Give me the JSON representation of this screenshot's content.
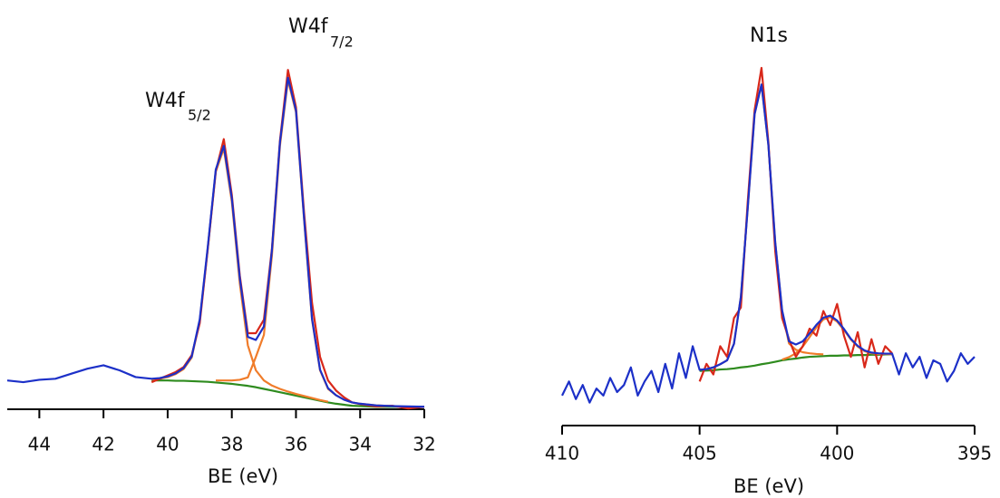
{
  "chart_data": [
    {
      "type": "line",
      "xlabel": "BE (eV)",
      "annotations": [
        {
          "text": "W4f",
          "subscript": "5/2"
        },
        {
          "text": "W4f",
          "subscript": "7/2"
        }
      ],
      "xlim": [
        45,
        32
      ],
      "xticks": [
        44,
        42,
        40,
        38,
        36,
        34,
        32
      ],
      "ylim": [
        0,
        110
      ],
      "x": [
        45,
        44.5,
        44,
        43.5,
        43,
        42.5,
        42,
        41.5,
        41,
        40.5,
        40.25,
        40,
        39.75,
        39.5,
        39.25,
        39,
        38.75,
        38.5,
        38.25,
        38,
        37.75,
        37.5,
        37.25,
        37,
        36.75,
        36.5,
        36.25,
        36,
        35.75,
        35.5,
        35.25,
        35,
        34.75,
        34.5,
        34.25,
        34,
        33.5,
        33,
        32.5,
        32
      ],
      "series": [
        {
          "color": "#2e8b1e",
          "values": [
            null,
            null,
            null,
            null,
            null,
            null,
            null,
            null,
            null,
            8,
            8,
            8,
            7.9,
            7.9,
            7.8,
            7.7,
            7.6,
            7.4,
            7.2,
            7,
            6.7,
            6.4,
            6,
            5.5,
            5,
            4.5,
            4,
            3.5,
            3,
            2.5,
            2,
            1.5,
            1.1,
            0.8,
            0.5,
            0.4,
            0.2,
            0.2,
            0.2,
            0.2
          ]
        },
        {
          "color": "#f07c2a",
          "values": [
            null,
            null,
            null,
            null,
            null,
            null,
            null,
            null,
            null,
            8.3,
            8.5,
            9,
            9.9,
            11.4,
            14.8,
            25.7,
            47,
            69.9,
            76.7,
            61,
            36.7,
            18.4,
            11,
            8,
            6.5,
            5.5,
            4.7,
            4,
            3.4,
            2.8,
            2.2,
            1.7,
            null,
            null,
            null,
            null,
            null,
            null,
            null,
            null
          ]
        },
        {
          "color": "#f07c2a",
          "values": [
            null,
            null,
            null,
            null,
            null,
            null,
            null,
            null,
            null,
            null,
            null,
            null,
            null,
            null,
            null,
            null,
            null,
            8,
            8,
            8,
            8.2,
            8.9,
            15,
            21.5,
            45,
            77.5,
            97,
            87.5,
            56,
            26,
            11,
            5.5,
            3.6,
            2.3,
            1.5,
            1.1,
            0.6,
            0.4,
            null,
            null
          ]
        },
        {
          "color": "#d8281a",
          "values": [
            null,
            null,
            null,
            null,
            null,
            null,
            null,
            null,
            null,
            7.5,
            8.5,
            9.5,
            10.5,
            12,
            15.5,
            25,
            47,
            70,
            79.5,
            63,
            39,
            22,
            22,
            26,
            47,
            79,
            100,
            89,
            58,
            31,
            15,
            8,
            5,
            3,
            1.5,
            1,
            0.3,
            0.5,
            -0.3,
            0.2
          ]
        },
        {
          "color": "#1c30c8",
          "values": [
            8,
            7.5,
            8.2,
            8.5,
            10,
            11.5,
            12.5,
            11,
            9,
            8.5,
            8.7,
            9.2,
            10.1,
            11.7,
            15.1,
            26.1,
            47.5,
            70.5,
            77.5,
            62,
            38.2,
            20.9,
            20,
            24,
            46.5,
            78.5,
            97.7,
            88,
            56.4,
            26.3,
            11.2,
            5.7,
            3.6,
            2.3,
            1.5,
            1.1,
            0.6,
            0.4,
            0.3,
            0.2
          ]
        }
      ]
    },
    {
      "type": "line",
      "title": "N1s",
      "xlabel": "BE (eV)",
      "xlim": [
        410,
        395
      ],
      "xticks": [
        410,
        405,
        400,
        395
      ],
      "ylim": [
        0,
        110
      ],
      "x": [
        410,
        409.75,
        409.5,
        409.25,
        409,
        408.75,
        408.5,
        408.25,
        408,
        407.75,
        407.5,
        407.25,
        407,
        406.75,
        406.5,
        406.25,
        406,
        405.75,
        405.5,
        405.25,
        405,
        404.75,
        404.5,
        404.25,
        404,
        403.75,
        403.5,
        403.25,
        403,
        402.75,
        402.5,
        402.25,
        402,
        401.75,
        401.5,
        401.25,
        401,
        400.75,
        400.5,
        400.25,
        400,
        399.75,
        399.5,
        399.25,
        399,
        398.75,
        398.5,
        398.25,
        398,
        397.75,
        397.5,
        397.25,
        397,
        396.75,
        396.5,
        396.25,
        396,
        395.75,
        395.5,
        395.25,
        395
      ],
      "series": [
        {
          "color": "#2e8b1e",
          "values": [
            null,
            null,
            null,
            null,
            null,
            null,
            null,
            null,
            null,
            null,
            null,
            null,
            null,
            null,
            null,
            null,
            null,
            null,
            null,
            null,
            15,
            15.1,
            15.2,
            15.4,
            15.5,
            15.7,
            16,
            16.2,
            16.5,
            16.9,
            17.2,
            17.6,
            18,
            18.3,
            18.5,
            18.8,
            19,
            19.1,
            19.2,
            19.3,
            19.3,
            19.4,
            19.4,
            19.5,
            19.5,
            19.6,
            19.6,
            19.7,
            19.7,
            null,
            null,
            null,
            null,
            null,
            null,
            null,
            null,
            null,
            null,
            null,
            null
          ]
        },
        {
          "color": "#f07c2a",
          "values": [
            null,
            null,
            null,
            null,
            null,
            null,
            null,
            null,
            null,
            null,
            null,
            null,
            null,
            null,
            null,
            null,
            null,
            null,
            null,
            null,
            15.3,
            15.5,
            16,
            16.9,
            18,
            22.7,
            36,
            61.2,
            87.9,
            96.3,
            79.2,
            51.5,
            32,
            22.8,
            21,
            20.3,
            20,
            19.8,
            19.7,
            null,
            null,
            null,
            null,
            null,
            null,
            null,
            null,
            null,
            null,
            null,
            null,
            null,
            null,
            null,
            null,
            null,
            null,
            null,
            null,
            null,
            null
          ]
        },
        {
          "color": "#f07c2a",
          "values": [
            null,
            null,
            null,
            null,
            null,
            null,
            null,
            null,
            null,
            null,
            null,
            null,
            null,
            null,
            null,
            null,
            null,
            null,
            null,
            null,
            null,
            null,
            null,
            null,
            null,
            null,
            null,
            null,
            null,
            null,
            null,
            null,
            18.2,
            18.9,
            20,
            21.9,
            24.6,
            27.4,
            29.6,
            30.3,
            29,
            26.6,
            23.9,
            21.9,
            20.6,
            20,
            19.8,
            19.8,
            19.7,
            null,
            null,
            null,
            null,
            null,
            null,
            null,
            null,
            null,
            null,
            null,
            null
          ]
        },
        {
          "color": "#d8281a",
          "values": [
            null,
            null,
            null,
            null,
            null,
            null,
            null,
            null,
            null,
            null,
            null,
            null,
            null,
            null,
            null,
            null,
            null,
            null,
            null,
            null,
            12,
            17,
            14,
            22,
            19,
            30,
            33,
            63,
            89,
            101,
            80,
            49,
            30,
            24,
            19,
            22,
            27,
            25,
            32,
            28,
            34,
            25,
            19,
            26,
            16,
            24,
            17,
            22,
            20,
            null,
            null,
            null,
            null,
            null,
            null,
            null,
            null,
            null,
            null,
            null,
            null
          ]
        },
        {
          "color": "#1c30c8",
          "values": [
            8,
            12,
            7,
            11,
            6,
            10,
            8,
            13,
            9,
            11,
            16,
            8,
            12,
            15,
            9,
            17,
            10,
            20,
            13,
            22,
            15.3,
            15.5,
            16,
            16.9,
            18,
            22.7,
            36,
            61.2,
            87.9,
            96.3,
            79.2,
            51.5,
            32.2,
            23.4,
            22.5,
            23.4,
            25.6,
            28.1,
            30.1,
            30.7,
            29.3,
            26.9,
            24.1,
            22.1,
            20.8,
            20.2,
            20,
            19.9,
            19.9,
            14,
            20,
            16,
            19,
            13,
            18,
            17,
            12,
            15,
            20,
            17,
            19
          ]
        }
      ]
    }
  ]
}
